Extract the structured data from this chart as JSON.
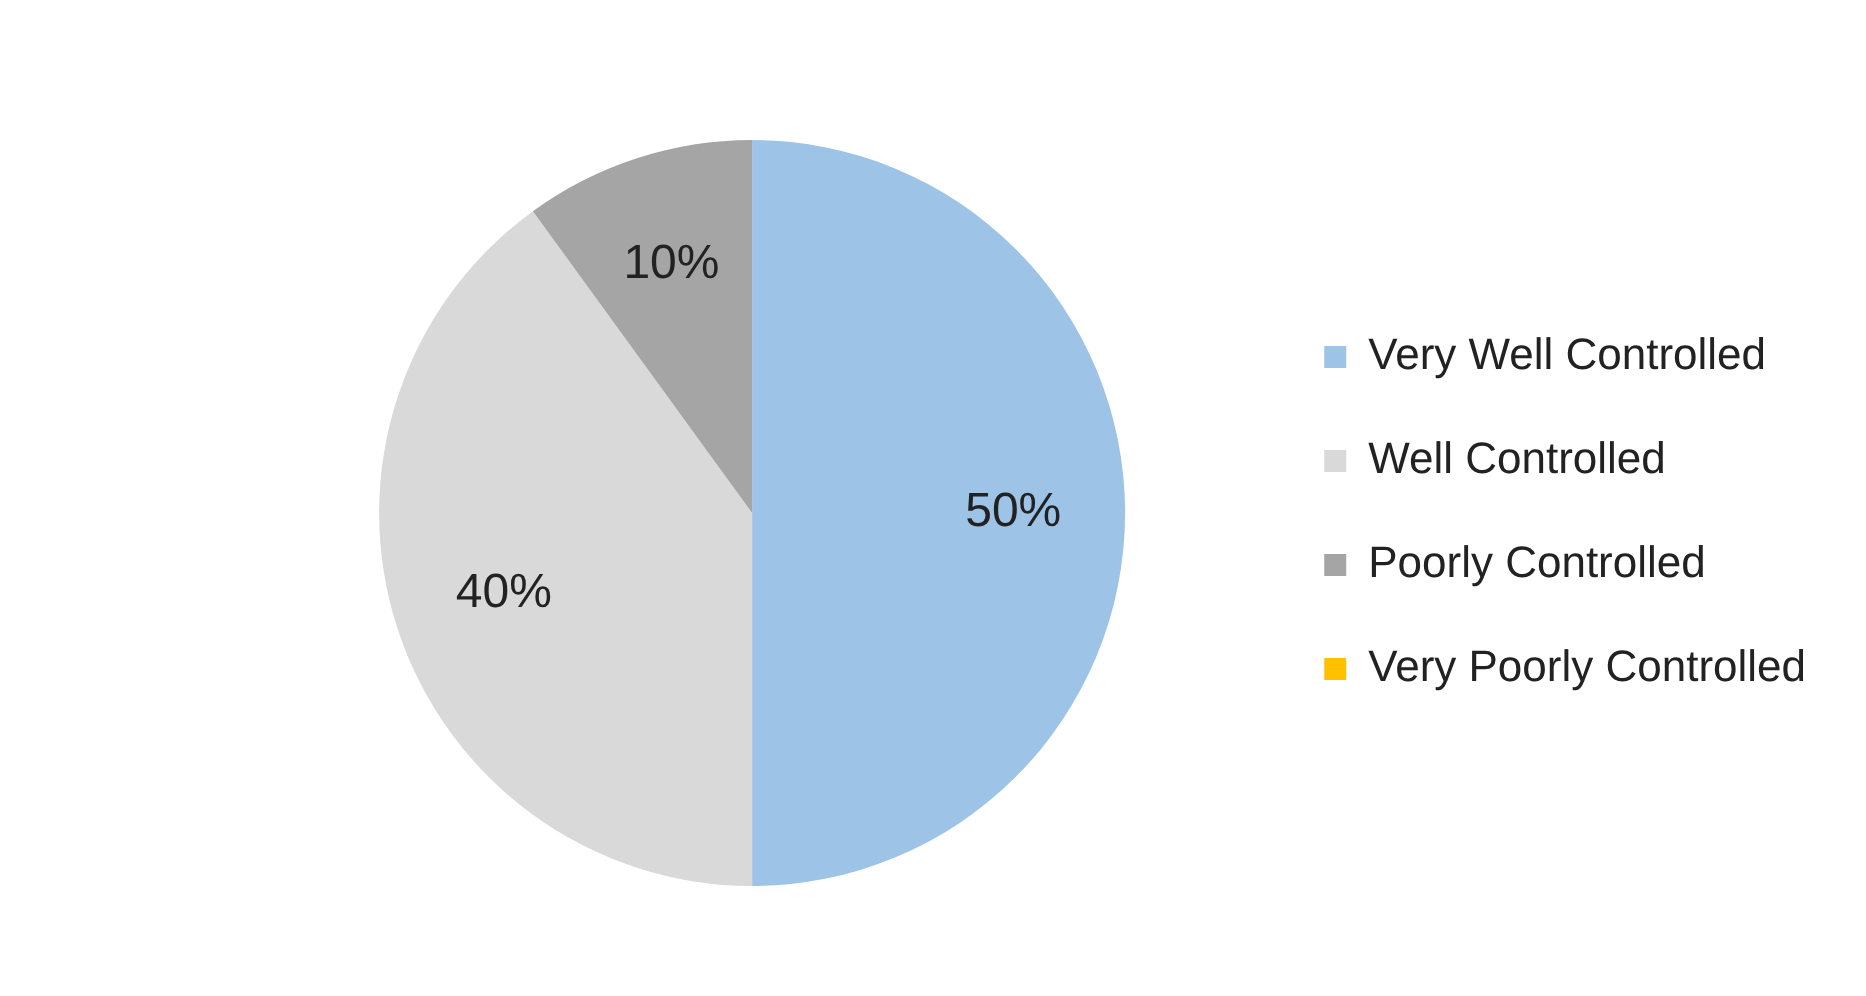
{
  "chart_data": {
    "type": "pie",
    "categories": [
      "Very Well Controlled",
      "Well Controlled",
      "Poorly Controlled",
      "Very Poorly Controlled"
    ],
    "values": [
      50,
      40,
      10,
      0
    ],
    "value_labels": [
      "50%",
      "40%",
      "10%",
      null
    ],
    "colors": [
      "#9dc3e6",
      "#d9d9d9",
      "#a5a5a5",
      "#ffc000"
    ],
    "legend": "right"
  }
}
